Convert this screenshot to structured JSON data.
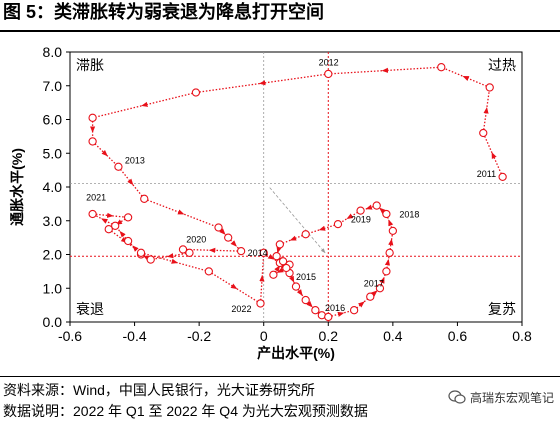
{
  "header": {
    "title": "图 5：类滞胀转为弱衰退为降息打开空间"
  },
  "footer": {
    "source": "资料来源：Wind，中国人民银行，光大证券研究所",
    "note": "数据说明：2022 年 Q1 至 2022 年 Q4 为光大宏观预测数据",
    "watermark": "高瑞东宏观笔记"
  },
  "chart_data": {
    "type": "scatter",
    "title": "",
    "xlabel": "产出水平(%)",
    "ylabel": "通胀水平(%)",
    "xlim": [
      -0.6,
      0.8
    ],
    "ylim": [
      0.0,
      8.0
    ],
    "xticks": [
      "-0.6",
      "-0.4",
      "-0.2",
      "0",
      "0.2",
      "0.4",
      "0.6",
      "0.8"
    ],
    "yticks": [
      "0.0",
      "1.0",
      "2.0",
      "3.0",
      "4.0",
      "5.0",
      "6.0",
      "7.0",
      "8.0"
    ],
    "quadrant_labels": {
      "top_left": "滞胀",
      "top_right": "过热",
      "bottom_left": "衰退",
      "bottom_right": "复苏"
    },
    "reference_lines": {
      "vertical_x": 0.2,
      "horizontal_y": 1.95,
      "center_x": 0.0,
      "center_y": 4.1
    },
    "colors": {
      "series": "#e8111a",
      "marker_fill": "#ffffff",
      "reference": "#e8111a",
      "center": "#999999"
    },
    "series": [
      {
        "points": [
          [
            0.74,
            4.3
          ],
          [
            0.68,
            5.6
          ],
          [
            0.7,
            6.95
          ],
          [
            0.55,
            7.55
          ],
          [
            0.2,
            7.35
          ],
          [
            -0.21,
            6.8
          ],
          [
            -0.53,
            6.05
          ],
          [
            -0.53,
            5.35
          ],
          [
            -0.45,
            4.6
          ],
          [
            -0.37,
            3.65
          ],
          [
            -0.14,
            2.8
          ],
          [
            -0.11,
            2.5
          ],
          [
            -0.07,
            2.1
          ],
          [
            -0.25,
            2.15
          ],
          [
            -0.23,
            2.05
          ],
          [
            -0.35,
            1.85
          ],
          [
            -0.38,
            2.0
          ],
          [
            -0.42,
            2.4
          ],
          [
            -0.46,
            2.85
          ],
          [
            -0.53,
            3.2
          ],
          [
            -0.42,
            3.1
          ],
          [
            -0.48,
            2.75
          ],
          [
            -0.38,
            2.05
          ],
          [
            -0.17,
            1.5
          ],
          [
            -0.01,
            0.55
          ],
          [
            0.0,
            2.05
          ],
          [
            0.05,
            1.75
          ],
          [
            0.08,
            1.45
          ],
          [
            0.1,
            1.05
          ],
          [
            0.13,
            0.65
          ],
          [
            0.16,
            0.35
          ],
          [
            0.18,
            0.2
          ],
          [
            0.2,
            0.15
          ],
          [
            0.28,
            0.35
          ],
          [
            0.33,
            0.75
          ],
          [
            0.36,
            1.0
          ],
          [
            0.38,
            1.5
          ],
          [
            0.39,
            2.05
          ],
          [
            0.4,
            2.7
          ],
          [
            0.38,
            3.2
          ],
          [
            0.35,
            3.45
          ],
          [
            0.3,
            3.3
          ],
          [
            0.23,
            2.9
          ],
          [
            0.13,
            2.6
          ],
          [
            0.05,
            2.3
          ],
          [
            0.04,
            1.95
          ],
          [
            0.08,
            1.7
          ],
          [
            0.07,
            1.6
          ],
          [
            0.03,
            1.4
          ],
          [
            0.06,
            1.8
          ]
        ]
      }
    ],
    "year_labels": [
      {
        "text": "2011",
        "x": 0.66,
        "y": 4.3
      },
      {
        "text": "2012",
        "x": 0.17,
        "y": 7.6
      },
      {
        "text": "2013",
        "x": -0.43,
        "y": 4.7
      },
      {
        "text": "2014",
        "x": -0.05,
        "y": 1.95
      },
      {
        "text": "2015",
        "x": 0.1,
        "y": 1.25
      },
      {
        "text": "2016",
        "x": 0.19,
        "y": 0.32
      },
      {
        "text": "2017",
        "x": 0.31,
        "y": 1.05
      },
      {
        "text": "2018",
        "x": 0.42,
        "y": 3.1
      },
      {
        "text": "2019",
        "x": 0.27,
        "y": 2.95
      },
      {
        "text": "2020",
        "x": -0.24,
        "y": 2.35
      },
      {
        "text": "2021",
        "x": -0.55,
        "y": 3.6
      },
      {
        "text": "2022",
        "x": -0.1,
        "y": 0.3
      }
    ]
  }
}
